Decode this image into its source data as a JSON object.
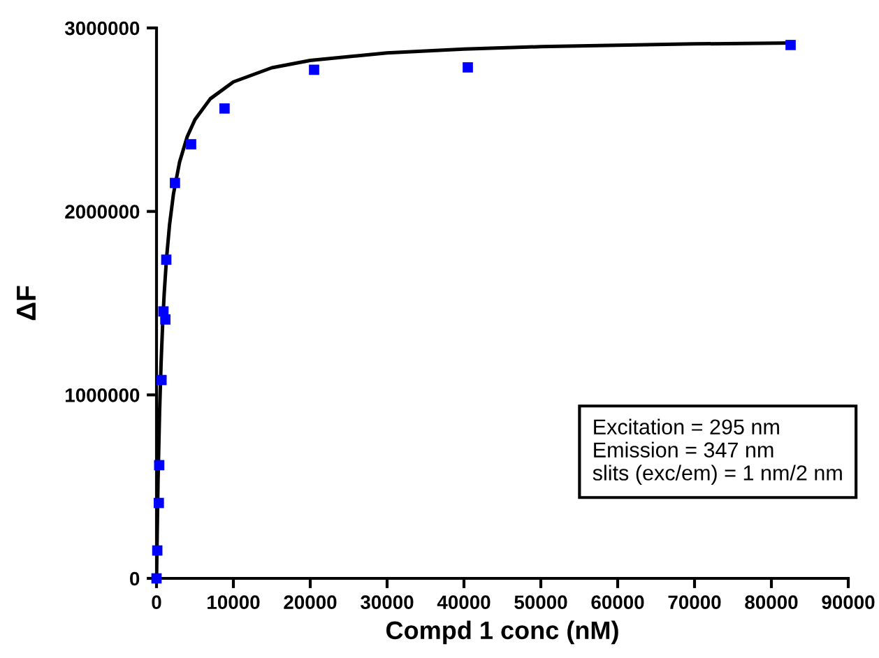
{
  "chart_data": {
    "type": "scatter",
    "xlabel": "Compd 1 conc (nM)",
    "ylabel": "ΔF",
    "xlim": [
      0,
      90000
    ],
    "xticks": [
      0,
      10000,
      20000,
      30000,
      40000,
      50000,
      60000,
      70000,
      80000,
      90000
    ],
    "ylim": [
      0,
      3000000
    ],
    "yticks": [
      0,
      1000000,
      2000000,
      3000000
    ],
    "grid": false,
    "legend": false,
    "series": [
      {
        "color": "#0000ff",
        "marker": "square",
        "x": [
          0,
          100,
          300,
          350,
          650,
          900,
          1150,
          1270,
          2400,
          4500,
          8850,
          20500,
          40500,
          82500
        ],
        "values": [
          0,
          152000,
          411000,
          617000,
          1081000,
          1455000,
          1411000,
          1737000,
          2155000,
          2366000,
          2561000,
          2772000,
          2785000,
          2907000
        ]
      },
      {
        "type": "line",
        "color": "#000000",
        "marker": "none",
        "line_style": "solid",
        "x": [
          0,
          200,
          400,
          600,
          800,
          1000,
          1300,
          1700,
          2200,
          3000,
          4000,
          5000,
          7000,
          10000,
          15000,
          20000,
          30000,
          40000,
          50000,
          60000,
          70000,
          82500
        ],
        "values": [
          0,
          536000,
          908000,
          1180000,
          1388000,
          1553000,
          1743000,
          1929000,
          2094000,
          2269000,
          2408000,
          2500000,
          2614000,
          2706000,
          2783000,
          2823000,
          2864000,
          2885000,
          2898000,
          2906000,
          2913000,
          2918000
        ]
      }
    ],
    "annotations": [
      "Excitation = 295 nm\nEmission = 347 nm\nslits (exc/em) = 1 nm/2 nm"
    ]
  }
}
